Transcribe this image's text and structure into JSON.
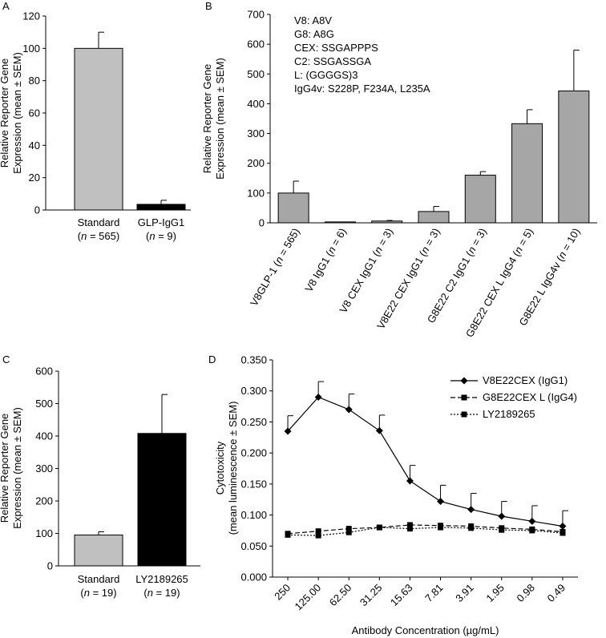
{
  "chart_data": [
    {
      "panel": "A",
      "type": "bar",
      "ylabel": [
        "Relative Reporter Gene",
        "Expression (mean ± SEM)"
      ],
      "ylim": [
        0,
        120
      ],
      "yticks": [
        0,
        20,
        40,
        60,
        80,
        100,
        120
      ],
      "categories": [
        {
          "name": "Standard",
          "n_label": "(n = 565)"
        },
        {
          "name": "GLP-IgG1",
          "n_label": "(n = 9)"
        }
      ],
      "values": [
        100,
        3.5
      ],
      "errors": [
        10,
        2.5
      ],
      "colors": [
        "#c0c0c0",
        "#000000"
      ]
    },
    {
      "panel": "B",
      "type": "bar",
      "ylabel": [
        "Relative Reporter Gene",
        "Expression (mean ± SEM)"
      ],
      "ylim": [
        0,
        700
      ],
      "yticks": [
        0,
        100,
        200,
        300,
        400,
        500,
        600,
        700
      ],
      "annotations": [
        "V8: A8V",
        "G8: A8G",
        "CEX: SSGAPPPS",
        "C2: SSGASSGA",
        "L: (GGGGS)3",
        "IgG4v: S228P, F234A, L235A"
      ],
      "categories": [
        "V8GLP-1 (n = 565)",
        "V8 IgG1 (n = 6)",
        "V8 CEX IgG1 (n = 3)",
        "V8E22 CEX IgG1 (n = 3)",
        "G8E22 C2 IgG1 (n = 3)",
        "G8E22 CEX L IgG4 (n = 5)",
        "G8E22 L IgG4v (n = 10)"
      ],
      "values": [
        100,
        3,
        6,
        38,
        160,
        333,
        443
      ],
      "errors": [
        40,
        0,
        2,
        17,
        12,
        47,
        137
      ],
      "colors": [
        "#a6a6a6"
      ]
    },
    {
      "panel": "C",
      "type": "bar",
      "ylabel": [
        "Relative Reporter Gene",
        "Expression (mean ± SEM)"
      ],
      "ylim": [
        0,
        600
      ],
      "yticks": [
        0,
        100,
        200,
        300,
        400,
        500,
        600
      ],
      "categories": [
        {
          "name": "Standard",
          "n_label": "(n = 19)"
        },
        {
          "name": "LY2189265",
          "n_label": "(n = 19)"
        }
      ],
      "values": [
        95,
        408
      ],
      "errors": [
        10,
        120
      ],
      "colors": [
        "#c0c0c0",
        "#000000"
      ]
    },
    {
      "panel": "D",
      "type": "line",
      "xlabel": "Antibody Concentration (µg/mL)",
      "ylabel": [
        "Cytotoxicity",
        "(mean luminescence ± SEM)"
      ],
      "ylim": [
        0,
        0.35
      ],
      "yticks": [
        "0.000",
        "0.050",
        "0.100",
        "0.150",
        "0.200",
        "0.250",
        "0.300",
        "0.350"
      ],
      "x": [
        "250",
        "125.00",
        "62.50",
        "31.25",
        "15.63",
        "7.81",
        "3.91",
        "1.95",
        "0.98",
        "0.49"
      ],
      "legend_position": "top-right",
      "series": [
        {
          "name": "V8E22CEX (IgG1)",
          "marker": "diamond",
          "dash": "",
          "values": [
            0.235,
            0.29,
            0.27,
            0.236,
            0.155,
            0.122,
            0.109,
            0.098,
            0.09,
            0.082
          ],
          "errors": [
            0.025,
            0.025,
            0.025,
            0.025,
            0.025,
            0.026,
            0.026,
            0.024,
            0.025,
            0.025
          ]
        },
        {
          "name": "G8E22CEX L (IgG4)",
          "marker": "square",
          "dash": "6,3",
          "values": [
            0.07,
            0.074,
            0.078,
            0.08,
            0.084,
            0.083,
            0.082,
            0.079,
            0.077,
            0.073
          ],
          "errors": [
            0,
            0,
            0,
            0,
            0,
            0,
            0,
            0,
            0,
            0
          ]
        },
        {
          "name": "LY2189265",
          "marker": "square",
          "dash": "2,2",
          "values": [
            0.068,
            0.067,
            0.072,
            0.08,
            0.078,
            0.08,
            0.079,
            0.076,
            0.075,
            0.071
          ],
          "errors": [
            0,
            0,
            0,
            0,
            0,
            0,
            0,
            0,
            0,
            0
          ]
        }
      ]
    }
  ]
}
